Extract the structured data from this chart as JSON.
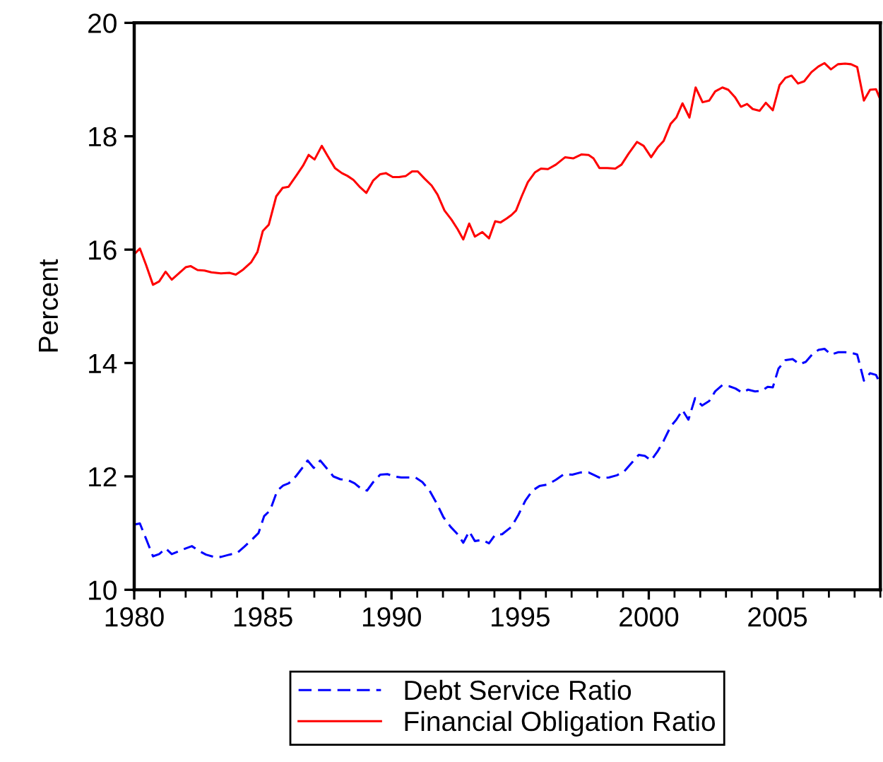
{
  "chart_data": {
    "type": "line",
    "ylabel": "Percent",
    "xlim": [
      1980,
      2009
    ],
    "xticks": [
      1980,
      1985,
      1990,
      1995,
      2000,
      2005
    ],
    "ylim": [
      10,
      20
    ],
    "yticks": [
      10,
      12,
      14,
      16,
      18,
      20
    ],
    "grid": false,
    "legend": "bottom",
    "series": [
      {
        "name": "Debt Service Ratio",
        "color": "#0000ff",
        "line_style": "dashed",
        "x": [
          1980.0,
          1980.22,
          1980.46,
          1980.73,
          1980.97,
          1981.22,
          1981.46,
          1981.73,
          1982.0,
          1982.24,
          1982.5,
          1982.79,
          1983.1,
          1983.37,
          1983.7,
          1984.0,
          1984.28,
          1984.61,
          1984.83,
          1985.05,
          1985.28,
          1985.56,
          1985.79,
          1986.01,
          1986.28,
          1986.5,
          1986.74,
          1986.98,
          1987.23,
          1987.47,
          1987.74,
          1988.01,
          1988.29,
          1988.56,
          1988.83,
          1989.05,
          1989.29,
          1989.56,
          1989.84,
          1990.11,
          1990.38,
          1990.66,
          1990.93,
          1991.2,
          1991.48,
          1991.75,
          1992.02,
          1992.3,
          1992.57,
          1992.79,
          1993.02,
          1993.24,
          1993.52,
          1993.79,
          1994.03,
          1994.3,
          1994.66,
          1994.93,
          1995.2,
          1995.48,
          1995.75,
          1996.08,
          1996.39,
          1996.7,
          1997.03,
          1997.35,
          1997.66,
          1997.85,
          1998.12,
          1998.45,
          1998.76,
          1999.03,
          1999.3,
          1999.61,
          1999.85,
          2000.09,
          2000.34,
          2000.58,
          2000.85,
          2001.07,
          2001.31,
          2001.54,
          2001.8,
          2002.07,
          2002.35,
          2002.58,
          2002.86,
          2003.13,
          2003.37,
          2003.62,
          2003.86,
          2004.13,
          2004.4,
          2004.62,
          2004.82,
          2005.04,
          2005.31,
          2005.59,
          2005.86,
          2006.1,
          2006.35,
          2006.59,
          2006.83,
          2007.08,
          2007.37,
          2007.63,
          2007.86,
          2008.1,
          2008.36,
          2008.6,
          2008.83,
          2008.96
        ],
        "values": [
          11.15,
          11.17,
          10.9,
          10.59,
          10.63,
          10.73,
          10.63,
          10.68,
          10.73,
          10.77,
          10.69,
          10.62,
          10.58,
          10.58,
          10.62,
          10.65,
          10.76,
          10.9,
          11.0,
          11.3,
          11.4,
          11.75,
          11.84,
          11.88,
          12.0,
          12.13,
          12.28,
          12.15,
          12.28,
          12.15,
          12.0,
          11.95,
          11.94,
          11.88,
          11.78,
          11.75,
          11.9,
          12.03,
          12.04,
          12.0,
          11.98,
          11.98,
          11.98,
          11.9,
          11.75,
          11.53,
          11.28,
          11.11,
          10.98,
          10.83,
          11.03,
          10.86,
          10.88,
          10.82,
          10.97,
          10.98,
          11.11,
          11.32,
          11.57,
          11.75,
          11.83,
          11.86,
          11.94,
          12.04,
          12.03,
          12.07,
          12.07,
          12.03,
          11.97,
          11.98,
          12.02,
          12.08,
          12.22,
          12.38,
          12.36,
          12.28,
          12.44,
          12.63,
          12.88,
          13.0,
          13.17,
          13.0,
          13.38,
          13.25,
          13.33,
          13.5,
          13.61,
          13.59,
          13.55,
          13.48,
          13.53,
          13.5,
          13.51,
          13.58,
          13.57,
          13.9,
          14.05,
          14.07,
          13.98,
          14.02,
          14.15,
          14.23,
          14.25,
          14.15,
          14.19,
          14.19,
          14.18,
          14.15,
          13.69,
          13.82,
          13.79,
          13.67
        ]
      },
      {
        "name": "Financial Obligation Ratio",
        "color": "#ff0000",
        "line_style": "solid",
        "x": [
          1980.0,
          1980.22,
          1980.46,
          1980.73,
          1980.97,
          1981.22,
          1981.46,
          1981.73,
          1982.0,
          1982.19,
          1982.46,
          1982.73,
          1983.0,
          1983.37,
          1983.7,
          1983.95,
          1984.24,
          1984.55,
          1984.79,
          1985.0,
          1985.23,
          1985.52,
          1985.77,
          1986.0,
          1986.32,
          1986.56,
          1986.78,
          1987.01,
          1987.29,
          1987.52,
          1987.8,
          1988.07,
          1988.29,
          1988.52,
          1988.78,
          1989.02,
          1989.29,
          1989.56,
          1989.78,
          1990.05,
          1990.29,
          1990.56,
          1990.8,
          1991.02,
          1991.29,
          1991.56,
          1991.79,
          1992.06,
          1992.33,
          1992.57,
          1992.79,
          1993.02,
          1993.24,
          1993.53,
          1993.79,
          1994.03,
          1994.24,
          1994.48,
          1994.66,
          1994.84,
          1995.06,
          1995.3,
          1995.57,
          1995.81,
          1996.08,
          1996.39,
          1996.75,
          1997.06,
          1997.39,
          1997.66,
          1997.85,
          1998.08,
          1998.39,
          1998.7,
          1998.94,
          1999.21,
          1999.54,
          1999.8,
          2000.09,
          2000.34,
          2000.58,
          2000.85,
          2001.07,
          2001.31,
          2001.58,
          2001.82,
          2002.09,
          2002.35,
          2002.58,
          2002.86,
          2003.09,
          2003.35,
          2003.58,
          2003.82,
          2004.04,
          2004.31,
          2004.55,
          2004.82,
          2005.08,
          2005.31,
          2005.55,
          2005.8,
          2006.04,
          2006.32,
          2006.59,
          2006.83,
          2007.08,
          2007.35,
          2007.63,
          2007.86,
          2008.1,
          2008.36,
          2008.6,
          2008.83,
          2008.96
        ],
        "values": [
          15.92,
          16.02,
          15.73,
          15.38,
          15.44,
          15.61,
          15.47,
          15.58,
          15.69,
          15.71,
          15.64,
          15.63,
          15.6,
          15.58,
          15.59,
          15.56,
          15.65,
          15.78,
          15.96,
          16.33,
          16.44,
          16.94,
          17.09,
          17.11,
          17.32,
          17.48,
          17.67,
          17.59,
          17.83,
          17.65,
          17.44,
          17.35,
          17.3,
          17.23,
          17.1,
          17.0,
          17.22,
          17.33,
          17.35,
          17.28,
          17.28,
          17.3,
          17.38,
          17.38,
          17.25,
          17.13,
          16.97,
          16.69,
          16.53,
          16.36,
          16.18,
          16.46,
          16.23,
          16.31,
          16.2,
          16.5,
          16.48,
          16.55,
          16.61,
          16.69,
          16.94,
          17.19,
          17.36,
          17.43,
          17.42,
          17.5,
          17.63,
          17.61,
          17.68,
          17.67,
          17.61,
          17.44,
          17.44,
          17.43,
          17.5,
          17.69,
          17.9,
          17.83,
          17.63,
          17.8,
          17.92,
          18.22,
          18.33,
          18.58,
          18.33,
          18.86,
          18.6,
          18.63,
          18.79,
          18.86,
          18.82,
          18.69,
          18.52,
          18.57,
          18.48,
          18.45,
          18.59,
          18.46,
          18.9,
          19.03,
          19.07,
          18.93,
          18.97,
          19.13,
          19.23,
          19.29,
          19.18,
          19.27,
          19.28,
          19.27,
          19.22,
          18.63,
          18.82,
          18.83,
          18.69
        ]
      }
    ]
  }
}
